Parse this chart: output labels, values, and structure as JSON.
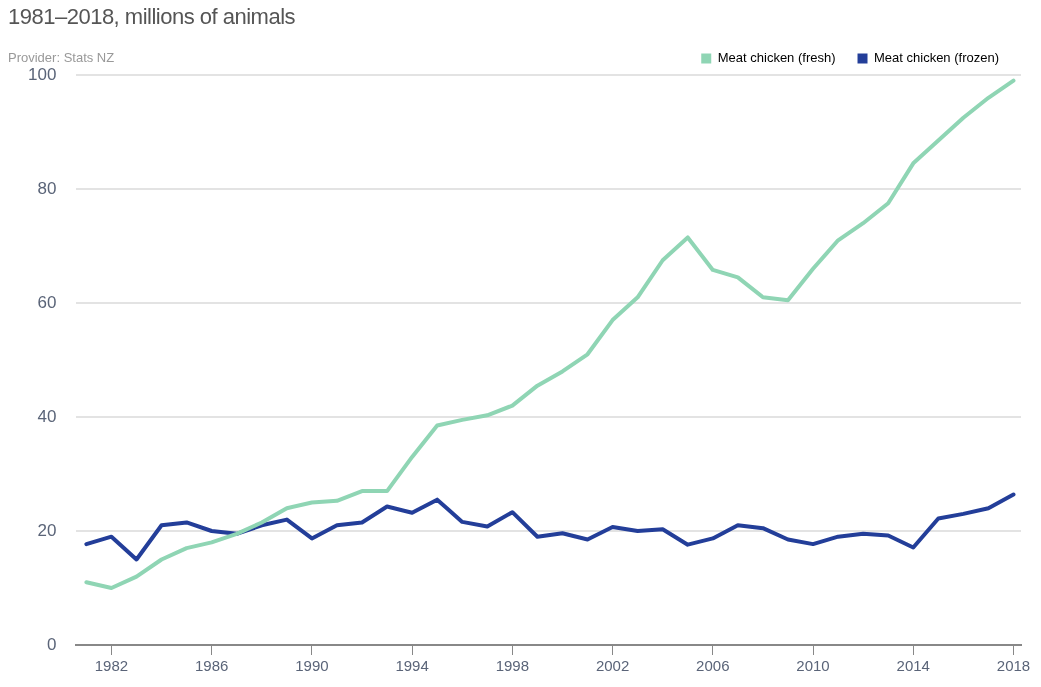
{
  "chart_data": {
    "type": "line",
    "title": "1981–2018, millions of animals",
    "subtitle": "Provider: Stats NZ",
    "x": [
      1981,
      1982,
      1983,
      1984,
      1985,
      1986,
      1987,
      1988,
      1989,
      1990,
      1991,
      1992,
      1993,
      1994,
      1995,
      1996,
      1997,
      1998,
      1999,
      2000,
      2001,
      2002,
      2003,
      2004,
      2005,
      2006,
      2007,
      2008,
      2009,
      2010,
      2011,
      2012,
      2013,
      2014,
      2015,
      2016,
      2017,
      2018
    ],
    "series": [
      {
        "name": "Meat chicken (fresh)",
        "color": "#8fd5b4",
        "values": [
          11,
          10,
          12,
          15,
          17,
          18,
          19.5,
          21.5,
          24,
          25,
          25.3,
          27,
          27,
          33,
          38.5,
          39.5,
          40.3,
          42,
          45.5,
          48,
          51,
          57,
          61,
          67.5,
          71.5,
          65.8,
          64.5,
          61,
          60.5,
          66,
          71,
          74,
          77.5,
          84.5,
          88.5,
          92.5,
          96,
          99
        ]
      },
      {
        "name": "Meat chicken (frozen)",
        "color": "#233e99",
        "values": [
          17.7,
          19,
          15,
          21,
          21.5,
          20,
          19.5,
          21,
          22,
          18.7,
          21,
          21.5,
          24.3,
          23.2,
          25.5,
          21.6,
          20.8,
          23.3,
          19,
          19.6,
          18.5,
          20.7,
          20,
          20.3,
          17.6,
          18.7,
          21,
          20.5,
          18.5,
          17.7,
          19,
          19.5,
          19.2,
          17.1,
          22.2,
          23,
          24,
          26.4
        ]
      }
    ],
    "xlim": [
      1980.6,
      2018.3
    ],
    "xticks": [
      1982,
      1986,
      1990,
      1994,
      1998,
      2002,
      2006,
      2010,
      2014,
      2018
    ],
    "ylim": [
      0,
      100
    ],
    "yticks": [
      0,
      20,
      40,
      60,
      80,
      100
    ],
    "grid": "y",
    "legend": "top right",
    "marker": "none",
    "line_style": "solid"
  }
}
